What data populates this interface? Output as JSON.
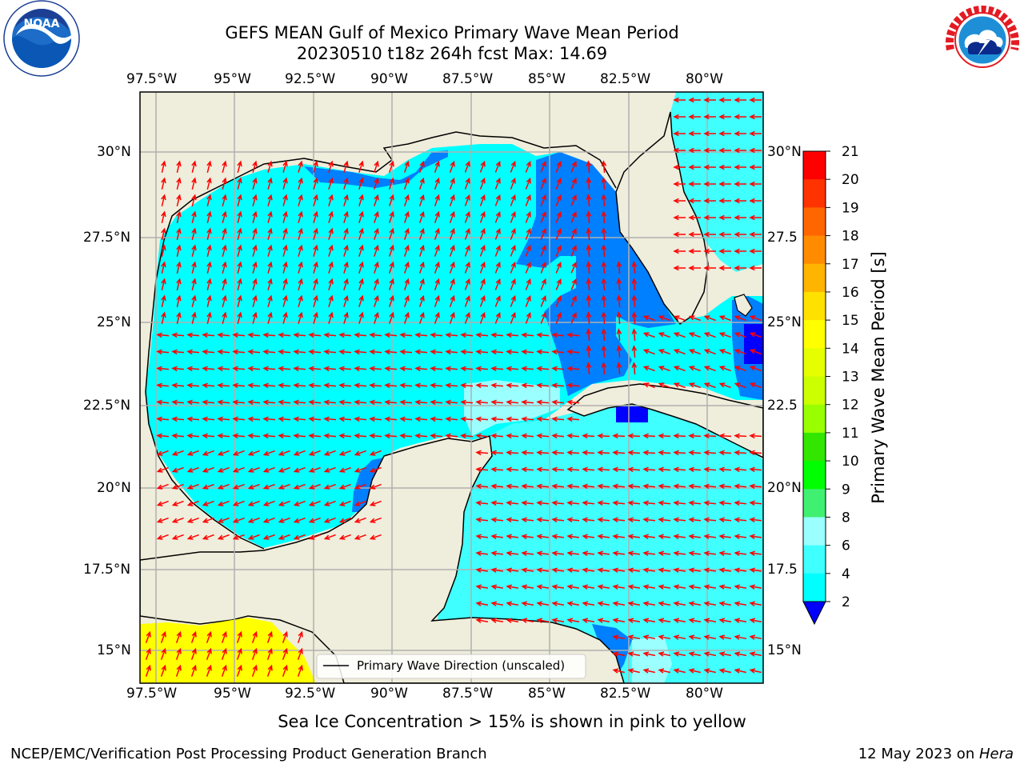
{
  "header": {
    "title_line1": "GEFS MEAN Gulf of Mexico Primary Wave Mean Period",
    "title_line2": "20230510 t18z 264h fcst   Max: 14.69"
  },
  "logos": {
    "left": "NOAA",
    "right_ring": "NATIONAL WEATHER SERVICE",
    "left_ring": "NATIONAL OCEANIC AND ATMOSPHERIC ADMINISTRATION · U.S. DEPARTMENT OF COMMERCE"
  },
  "map": {
    "lon_labels": [
      "97.5°W",
      "95°W",
      "92.5°W",
      "90°W",
      "87.5°W",
      "85°W",
      "82.5°W",
      "80°W"
    ],
    "lat_labels_left": [
      "30°N",
      "27.5°N",
      "25°N",
      "22.5°N",
      "20°N",
      "17.5°N",
      "15°N"
    ],
    "lat_labels_right": [
      "30°N",
      "27.5",
      "25°N",
      "22.5",
      "20°N",
      "17.5",
      "15°N"
    ],
    "legend_label": "Primary Wave Direction (unscaled)",
    "colors": {
      "land": "#efeddb",
      "water_low": "#007fff",
      "water_mid": "#00ffff",
      "water_high": "#40ffff",
      "water_teal": "#9bffff",
      "ice": "#ffff00",
      "arrow": "#ff0000"
    }
  },
  "colorbar": {
    "label": "Primary Wave Mean Period [s]",
    "ticks": [
      "21",
      "20",
      "19",
      "18",
      "17",
      "16",
      "15",
      "14",
      "13",
      "12",
      "11",
      "10",
      "9",
      "8",
      "6",
      "4",
      "2"
    ],
    "colors": [
      "#ff0000",
      "#ff3300",
      "#ff6600",
      "#ff8c00",
      "#ffb400",
      "#ffe100",
      "#ffff00",
      "#e6ff00",
      "#ccff00",
      "#99ff00",
      "#33e600",
      "#00ff00",
      "#40f070",
      "#9bffff",
      "#40ffff",
      "#00ffff",
      "#007fff",
      "#0000ff"
    ]
  },
  "notes": {
    "ice": "Sea Ice Concentration > 15% is shown in pink to yellow"
  },
  "footer": {
    "left": "NCEP/EMC/Verification Post Processing Product Generation Branch",
    "right_prefix": "12 May 2023 on ",
    "right_host": "Hera"
  }
}
